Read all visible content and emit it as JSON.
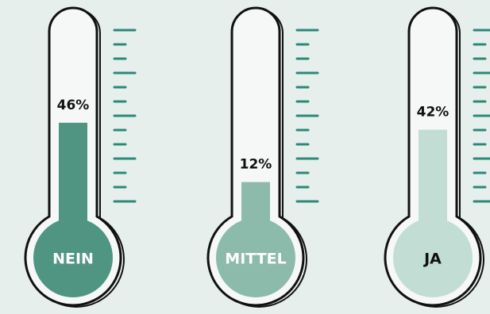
{
  "chart_data": {
    "type": "bar",
    "categories": [
      "NEIN",
      "MITTEL",
      "JA"
    ],
    "values": [
      46,
      12,
      42
    ],
    "value_labels": [
      "46%",
      "12%",
      "42%"
    ],
    "colors": [
      "#4f9582",
      "#8cbaab",
      "#c2ddd3"
    ]
  }
}
